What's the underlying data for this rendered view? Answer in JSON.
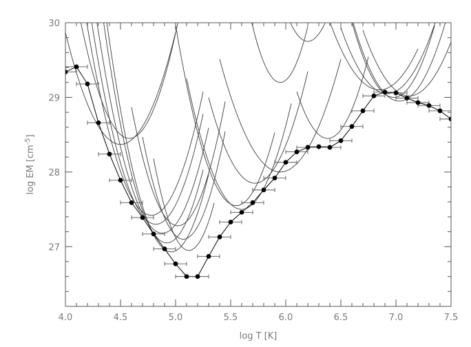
{
  "chart_data": {
    "type": "line",
    "xlabel": "log T [K]",
    "ylabel_main": "log EM [cm",
    "ylabel_sup": "-5",
    "ylabel_close": "]",
    "xlim": [
      4.0,
      7.5
    ],
    "ylim": [
      26.2,
      30.0
    ],
    "xticks": [
      "4.0",
      "4.5",
      "5.0",
      "5.5",
      "6.0",
      "6.5",
      "7.0",
      "7.5"
    ],
    "xtick_values": [
      4.0,
      4.5,
      5.0,
      5.5,
      6.0,
      6.5,
      7.0,
      7.5
    ],
    "yticks": [
      "27",
      "28",
      "29",
      "30"
    ],
    "ytick_values": [
      27,
      28,
      29,
      30
    ],
    "grid": false,
    "dem_series": {
      "x": [
        4.0,
        4.1,
        4.2,
        4.3,
        4.4,
        4.5,
        4.6,
        4.7,
        4.8,
        4.9,
        5.0,
        5.1,
        5.2,
        5.3,
        5.4,
        5.5,
        5.6,
        5.7,
        5.8,
        5.9,
        6.0,
        6.1,
        6.2,
        6.3,
        6.4,
        6.5,
        6.6,
        6.7,
        6.8,
        6.9,
        7.0,
        7.1,
        7.2,
        7.3,
        7.4,
        7.5
      ],
      "y": [
        29.34,
        29.41,
        29.18,
        28.66,
        28.24,
        27.89,
        27.59,
        27.39,
        27.17,
        26.97,
        26.77,
        26.6,
        26.6,
        26.87,
        27.13,
        27.33,
        27.46,
        27.59,
        27.76,
        27.92,
        28.13,
        28.27,
        28.33,
        28.34,
        28.33,
        28.42,
        28.61,
        28.82,
        29.02,
        29.07,
        29.06,
        28.99,
        28.93,
        28.89,
        28.82,
        28.71
      ],
      "xerr": 0.1
    },
    "em_loci_curves": [
      {
        "xmin": 4.0,
        "xmax": 5.45,
        "min_x": 4.5,
        "min_y": 28.37,
        "a": 6.0
      },
      {
        "xmin": 4.0,
        "xmax": 5.0,
        "min_x": 4.58,
        "min_y": 28.45,
        "a": 8.0
      },
      {
        "xmin": 4.05,
        "xmax": 5.25,
        "min_x": 4.78,
        "min_y": 27.42,
        "a": 7.5
      },
      {
        "xmin": 4.05,
        "xmax": 5.25,
        "min_x": 4.82,
        "min_y": 27.3,
        "a": 8.0
      },
      {
        "xmin": 4.08,
        "xmax": 5.3,
        "min_x": 4.88,
        "min_y": 27.18,
        "a": 8.0
      },
      {
        "xmin": 4.1,
        "xmax": 5.25,
        "min_x": 4.92,
        "min_y": 27.05,
        "a": 9.0
      },
      {
        "xmin": 4.15,
        "xmax": 5.3,
        "min_x": 4.96,
        "min_y": 26.93,
        "a": 9.0
      },
      {
        "xmin": 4.6,
        "xmax": 5.45,
        "min_x": 5.02,
        "min_y": 27.28,
        "a": 9.0
      },
      {
        "xmin": 4.7,
        "xmax": 5.45,
        "min_x": 5.07,
        "min_y": 27.1,
        "a": 10.0
      },
      {
        "xmin": 4.8,
        "xmax": 5.35,
        "min_x": 5.12,
        "min_y": 26.95,
        "a": 12.0
      },
      {
        "xmin": 5.0,
        "xmax": 5.9,
        "min_x": 5.55,
        "min_y": 27.55,
        "a": 8.0
      },
      {
        "xmin": 5.1,
        "xmax": 6.05,
        "min_x": 5.6,
        "min_y": 27.5,
        "a": 7.0
      },
      {
        "xmin": 5.3,
        "xmax": 6.2,
        "min_x": 5.72,
        "min_y": 27.85,
        "a": 6.5
      },
      {
        "xmin": 5.4,
        "xmax": 6.5,
        "min_x": 5.95,
        "min_y": 28.0,
        "a": 5.0
      },
      {
        "xmin": 6.1,
        "xmax": 6.75,
        "min_x": 6.38,
        "min_y": 28.45,
        "a": 8.0
      },
      {
        "xmin": 6.6,
        "xmax": 7.35,
        "min_x": 6.98,
        "min_y": 29.0,
        "a": 7.0
      },
      {
        "xmin": 6.6,
        "xmax": 7.45,
        "min_x": 7.03,
        "min_y": 28.95,
        "a": 6.0
      },
      {
        "xmin": 6.5,
        "xmax": 7.45,
        "min_x": 6.92,
        "min_y": 29.05,
        "a": 5.0
      },
      {
        "xmin": 6.7,
        "xmax": 7.5,
        "min_x": 7.12,
        "min_y": 29.02,
        "a": 5.0
      },
      {
        "xmin": 6.4,
        "xmax": 7.2,
        "min_x": 6.85,
        "min_y": 29.1,
        "a": 4.5
      },
      {
        "xmin": 5.6,
        "xmax": 6.2,
        "min_x": 5.95,
        "min_y": 29.2,
        "a": 12.0
      },
      {
        "xmin": 5.9,
        "xmax": 6.55,
        "min_x": 6.2,
        "min_y": 29.75,
        "a": 10.0
      },
      {
        "xmin": 5.5,
        "xmax": 5.9,
        "min_x": 5.7,
        "min_y": 30.02,
        "a": 20.0
      }
    ]
  }
}
